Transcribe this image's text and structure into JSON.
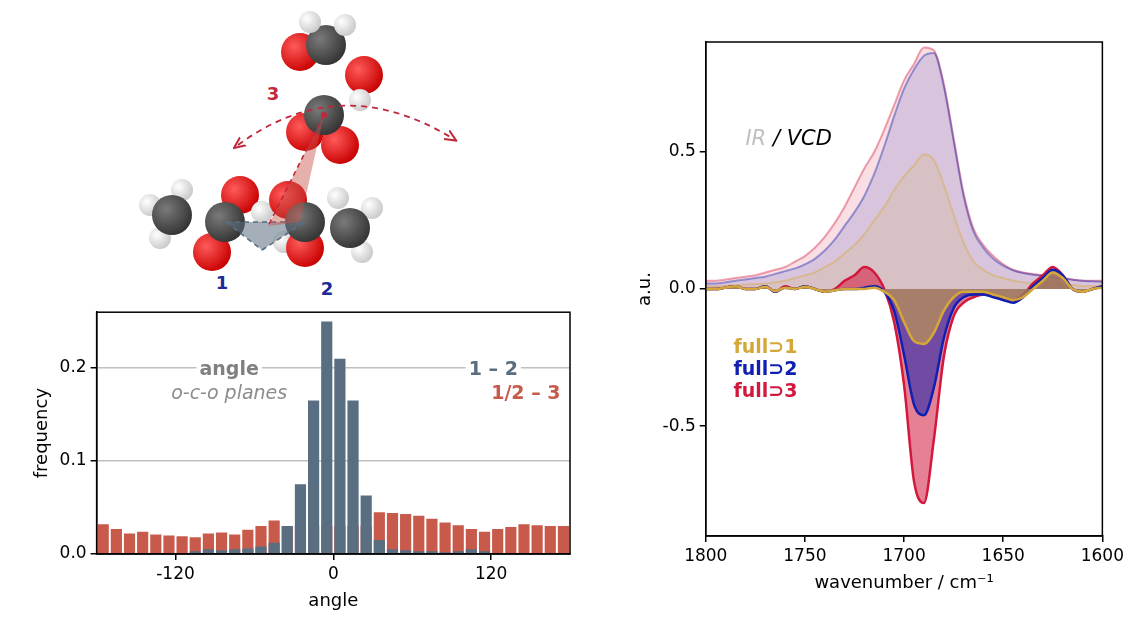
{
  "diagram": {
    "labels": [
      "1",
      "2",
      "3"
    ]
  },
  "chart_data": [
    {
      "type": "histogram",
      "x_label": "angle",
      "y_label": "frequency",
      "annotations": [
        "angle",
        "o-c-o planes"
      ],
      "bins": [
        -180,
        -170,
        -160,
        -150,
        -140,
        -130,
        -120,
        -110,
        -100,
        -90,
        -80,
        -70,
        -60,
        -50,
        -40,
        -30,
        -20,
        -10,
        0,
        10,
        20,
        30,
        40,
        50,
        60,
        70,
        80,
        90,
        100,
        110,
        120,
        130,
        140,
        150,
        160,
        170,
        180
      ],
      "series": [
        {
          "name": "1 – 2",
          "color": "#5a6e82",
          "values": [
            0,
            0,
            0,
            0,
            0,
            0,
            0,
            0.003,
            0.005,
            0.004,
            0.005,
            0.006,
            0.008,
            0.012,
            0.03,
            0.075,
            0.165,
            0.25,
            0.21,
            0.165,
            0.063,
            0.015,
            0.005,
            0.004,
            0.003,
            0.003,
            0.002,
            0.003,
            0.005,
            0.003,
            0,
            0,
            0,
            0,
            0,
            0
          ]
        },
        {
          "name": "1/2 – 3",
          "color": "#c85a4b",
          "values": [
            0.032,
            0.027,
            0.022,
            0.024,
            0.021,
            0.02,
            0.019,
            0.018,
            0.022,
            0.023,
            0.021,
            0.026,
            0.03,
            0.036,
            0.03,
            0.03,
            0.03,
            0.03,
            0.03,
            0.03,
            0.03,
            0.045,
            0.044,
            0.043,
            0.041,
            0.038,
            0.034,
            0.031,
            0.027,
            0.024,
            0.027,
            0.029,
            0.032,
            0.031,
            0.03,
            0.03
          ]
        }
      ],
      "xlim": [
        -180,
        180
      ],
      "xticks": [
        -120,
        0,
        120
      ],
      "ylim": [
        0,
        0.26
      ],
      "yticks": [
        {
          "value": 0,
          "label": "0.0"
        },
        0.1,
        0.2
      ],
      "grid": "y"
    },
    {
      "type": "line",
      "x_label": "wavenumber / cm⁻¹",
      "y_label": "a.u.",
      "annotations": [
        "IR",
        "/ VCD"
      ],
      "x": [
        1800,
        1795,
        1790,
        1785,
        1780,
        1775,
        1770,
        1765,
        1760,
        1755,
        1750,
        1745,
        1740,
        1735,
        1730,
        1725,
        1720,
        1715,
        1710,
        1705,
        1700,
        1695,
        1690,
        1685,
        1680,
        1675,
        1670,
        1665,
        1660,
        1655,
        1650,
        1645,
        1640,
        1635,
        1630,
        1625,
        1620,
        1615,
        1610,
        1605,
        1600
      ],
      "series": [
        {
          "name": "full⊃1",
          "color": "#d4a838",
          "ir": [
            0.01,
            0.01,
            0.012,
            0.014,
            0.016,
            0.018,
            0.02,
            0.025,
            0.03,
            0.04,
            0.05,
            0.06,
            0.08,
            0.1,
            0.13,
            0.16,
            0.2,
            0.25,
            0.3,
            0.36,
            0.41,
            0.45,
            0.49,
            0.47,
            0.38,
            0.27,
            0.17,
            0.1,
            0.07,
            0.05,
            0.04,
            0.03,
            0.025,
            0.02,
            0.02,
            0.02,
            0.015,
            0.015,
            0.01,
            0.01,
            0.01
          ],
          "vcd": [
            0,
            0,
            0.005,
            0.01,
            0,
            0,
            0.008,
            -0.008,
            0.005,
            0,
            0.008,
            0,
            -0.01,
            -0.005,
            0,
            0,
            0,
            0.005,
            -0.01,
            -0.04,
            -0.12,
            -0.19,
            -0.2,
            -0.16,
            -0.08,
            -0.03,
            -0.01,
            -0.01,
            -0.01,
            -0.02,
            -0.03,
            -0.04,
            -0.03,
            0,
            0.03,
            0.06,
            0.04,
            0,
            -0.01,
            0,
            0.005
          ]
        },
        {
          "name": "full⊃2",
          "color": "#1020b0",
          "ir": [
            0.02,
            0.02,
            0.025,
            0.03,
            0.035,
            0.04,
            0.045,
            0.055,
            0.065,
            0.075,
            0.09,
            0.11,
            0.14,
            0.18,
            0.23,
            0.28,
            0.34,
            0.42,
            0.52,
            0.63,
            0.73,
            0.8,
            0.85,
            0.86,
            0.74,
            0.54,
            0.34,
            0.21,
            0.15,
            0.11,
            0.085,
            0.068,
            0.058,
            0.052,
            0.048,
            0.043,
            0.038,
            0.034,
            0.03,
            0.028,
            0.026
          ],
          "vcd": [
            0,
            0,
            0.005,
            0.01,
            0,
            0,
            0.01,
            -0.01,
            0.005,
            0,
            0.01,
            0,
            -0.01,
            -0.005,
            0,
            0,
            0.005,
            0.01,
            -0.01,
            -0.08,
            -0.24,
            -0.42,
            -0.46,
            -0.36,
            -0.18,
            -0.07,
            -0.03,
            -0.02,
            -0.02,
            -0.03,
            -0.04,
            -0.05,
            -0.03,
            0.01,
            0.04,
            0.07,
            0.05,
            0,
            -0.01,
            0,
            0.01
          ]
        },
        {
          "name": "full⊃3",
          "color": "#d2183c",
          "ir": [
            0.03,
            0.03,
            0.035,
            0.04,
            0.045,
            0.05,
            0.06,
            0.07,
            0.08,
            0.1,
            0.12,
            0.15,
            0.19,
            0.24,
            0.3,
            0.37,
            0.44,
            0.5,
            0.58,
            0.67,
            0.76,
            0.82,
            0.88,
            0.87,
            0.75,
            0.55,
            0.35,
            0.22,
            0.16,
            0.12,
            0.09,
            0.07,
            0.06,
            0.055,
            0.05,
            0.045,
            0.04,
            0.035,
            0.03,
            0.03,
            0.03
          ],
          "vcd": [
            0,
            0,
            0.005,
            0.01,
            0,
            0,
            0.01,
            -0.01,
            0.01,
            0,
            0.01,
            0,
            -0.01,
            0,
            0.03,
            0.05,
            0.08,
            0.06,
            0,
            -0.12,
            -0.35,
            -0.7,
            -0.78,
            -0.55,
            -0.25,
            -0.1,
            -0.05,
            -0.03,
            -0.02,
            -0.02,
            -0.04,
            -0.04,
            -0.02,
            0.02,
            0.05,
            0.08,
            0.05,
            0,
            -0.01,
            0,
            0.01
          ]
        }
      ],
      "xlim": [
        1800,
        1600
      ],
      "xticks": [
        1800,
        1750,
        1700,
        1650,
        1600
      ],
      "ylim": [
        -0.9,
        0.9
      ],
      "yticks": [
        -0.5,
        {
          "value": 0,
          "label": "0.0"
        },
        0.5
      ],
      "grid": false
    }
  ]
}
